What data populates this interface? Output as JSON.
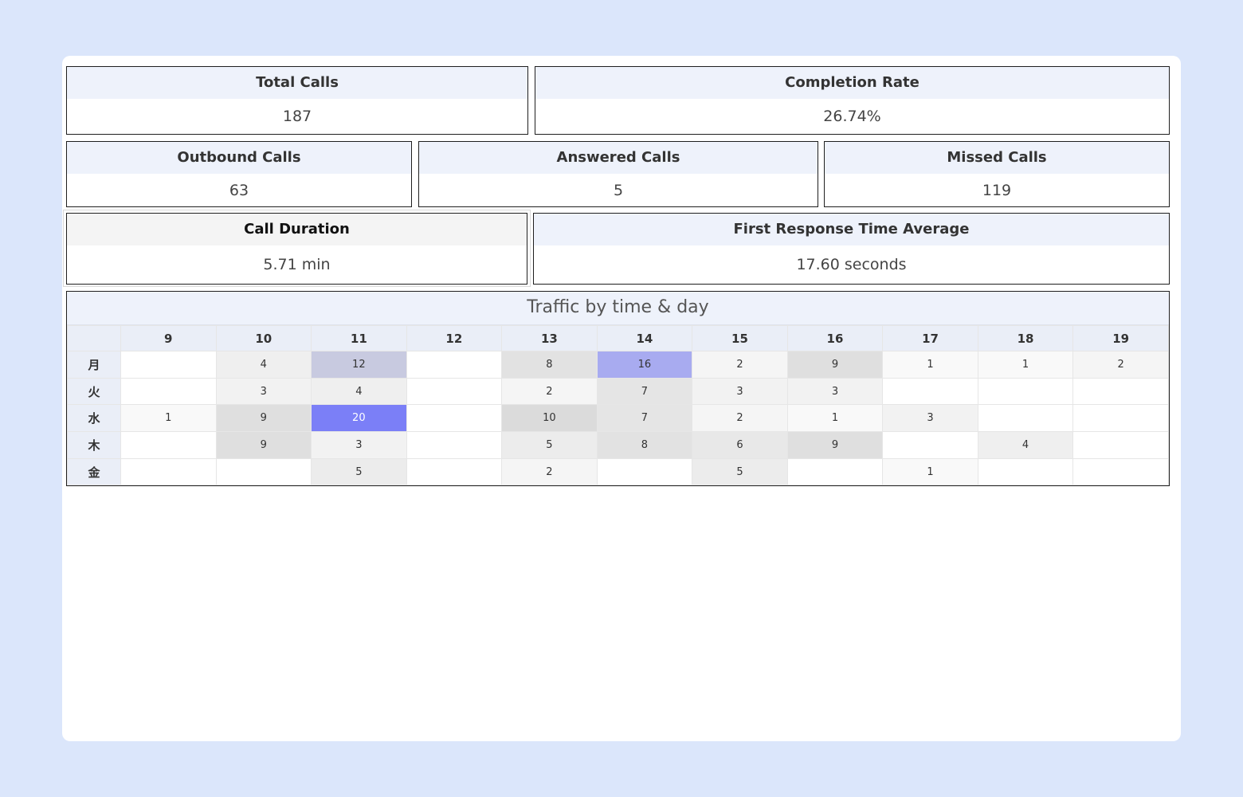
{
  "kpis": {
    "total_calls": {
      "title": "Total Calls",
      "value": "187"
    },
    "completion_rate": {
      "title": "Completion Rate",
      "value": "26.74%"
    },
    "outbound_calls": {
      "title": "Outbound Calls",
      "value": "63"
    },
    "answered_calls": {
      "title": "Answered Calls",
      "value": "5"
    },
    "missed_calls": {
      "title": "Missed Calls",
      "value": "119"
    },
    "call_duration": {
      "title": "Call Duration",
      "value": "5.71 min"
    },
    "first_response": {
      "title": "First Response Time Average",
      "value": "17.60 seconds"
    }
  },
  "heatmap": {
    "title": "Traffic by time & day",
    "hours": [
      "9",
      "10",
      "11",
      "12",
      "13",
      "14",
      "15",
      "16",
      "17",
      "18",
      "19"
    ],
    "days": [
      "月",
      "火",
      "水",
      "木",
      "金"
    ],
    "cells": [
      [
        "",
        "4",
        "12",
        "",
        "8",
        "16",
        "2",
        "9",
        "1",
        "1",
        "2"
      ],
      [
        "",
        "3",
        "4",
        "",
        "2",
        "7",
        "3",
        "3",
        "",
        "",
        ""
      ],
      [
        "1",
        "9",
        "20",
        "",
        "10",
        "7",
        "2",
        "1",
        "3",
        "",
        ""
      ],
      [
        "",
        "9",
        "3",
        "",
        "5",
        "8",
        "6",
        "9",
        "",
        "4",
        ""
      ],
      [
        "",
        "",
        "5",
        "",
        "2",
        "",
        "5",
        "",
        "1",
        "",
        ""
      ]
    ],
    "colors": {
      "low": "#ffffff",
      "mid": "#dcdcdc",
      "high_mid": "#c8cae0",
      "high": "#a8abf0",
      "max": "#7b7ff7"
    }
  }
}
